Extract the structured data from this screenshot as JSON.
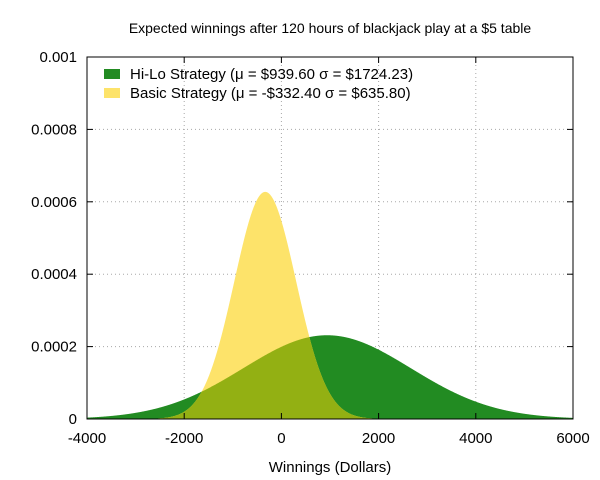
{
  "chart_data": {
    "type": "area",
    "title": "Expected winnings after 120 hours of blackjack play at a $5 table",
    "xlabel": "Winnings (Dollars)",
    "ylabel": "",
    "xlim": [
      -4000,
      6000
    ],
    "ylim": [
      0,
      0.001
    ],
    "x_ticks": [
      -4000,
      -2000,
      0,
      2000,
      4000,
      6000
    ],
    "y_ticks": [
      0,
      0.0002,
      0.0004,
      0.0006,
      0.0008,
      0.001
    ],
    "x_tick_labels": [
      "-4000",
      "-2000",
      "0",
      "2000",
      "4000",
      "6000"
    ],
    "y_tick_labels": [
      "0",
      "0.0002",
      "0.0004",
      "0.0006",
      "0.0008",
      "0.001"
    ],
    "grid": true,
    "legend_position": "top-left",
    "series": [
      {
        "name": "Hi-Lo Strategy (μ = $939.60 σ = $1724.23)",
        "distribution": "normal",
        "mean": 939.6,
        "sd": 1724.23,
        "color": "#228b22"
      },
      {
        "name": "Basic Strategy (μ = -$332.40 σ = $635.80)",
        "distribution": "normal",
        "mean": -332.4,
        "sd": 635.8,
        "color": "#fde36a"
      }
    ],
    "overlap_color": "#93b013"
  }
}
